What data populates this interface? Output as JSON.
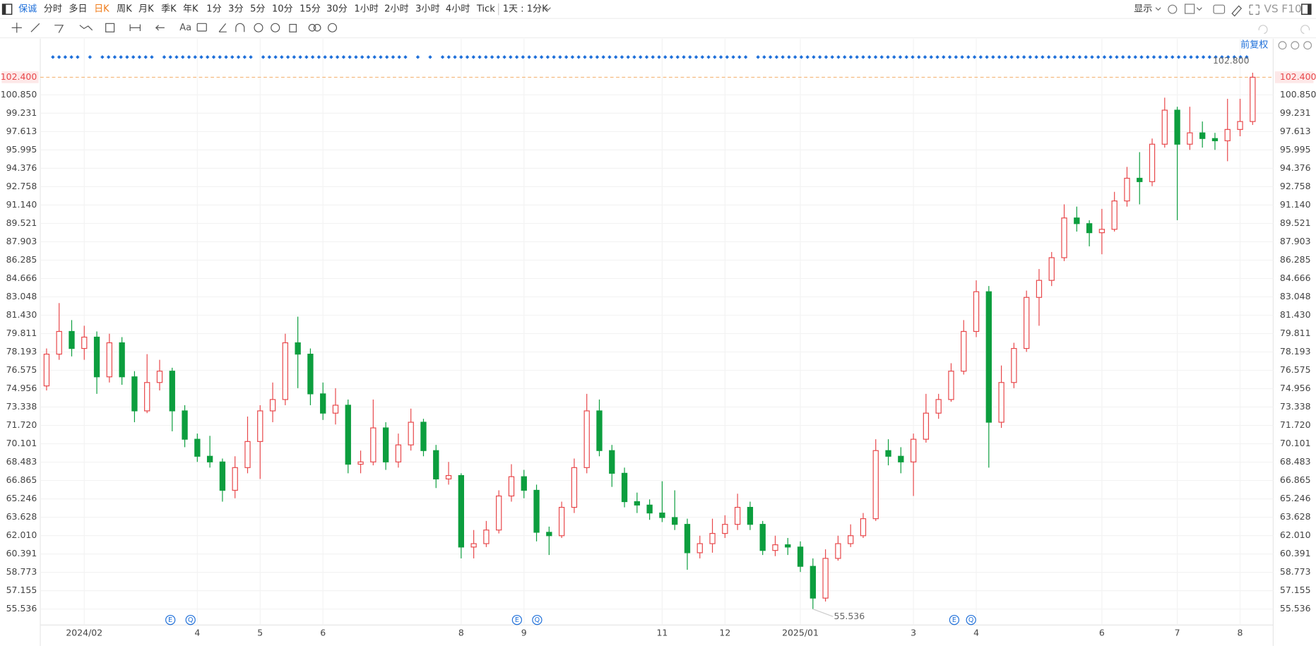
{
  "toolbar": {
    "symbol": "保诚",
    "periods": [
      "分时",
      "多日",
      "日K",
      "周K",
      "月K",
      "季K",
      "年K",
      "1分",
      "3分",
      "5分",
      "10分",
      "15分",
      "30分",
      "1小时",
      "2小时",
      "3小时",
      "4小时",
      "Tick"
    ],
    "active_period": "日K",
    "range": "1天 : 1分K",
    "display": "显示",
    "vs": "VS",
    "f10": "F10"
  },
  "drawing_tools": {
    "text_tool": "Aa"
  },
  "chart_data": {
    "type": "candlestick",
    "adjust": "前复权",
    "up_color": "#e8474a",
    "down_color": "#0c9e3e",
    "grid": true,
    "categories": [
      null,
      null,
      null,
      "2024/02",
      null,
      null,
      null,
      null,
      null,
      null,
      null,
      null,
      "4",
      null,
      null,
      null,
      null,
      "5",
      null,
      null,
      null,
      null,
      "6",
      null,
      null,
      null,
      null,
      null,
      null,
      null,
      null,
      null,
      null,
      "8",
      null,
      null,
      null,
      null,
      "9",
      null,
      null,
      null,
      null,
      null,
      null,
      null,
      null,
      null,
      null,
      "11",
      null,
      null,
      null,
      null,
      "12",
      null,
      null,
      null,
      null,
      null,
      "2025/01",
      null,
      null,
      null,
      null,
      null,
      null,
      null,
      null,
      "3",
      null,
      null,
      null,
      null,
      "4",
      null,
      null,
      null,
      null,
      null,
      null,
      null,
      null,
      null,
      "6",
      null,
      null,
      null,
      null,
      null,
      "7",
      null,
      null,
      null,
      null,
      "8",
      null
    ],
    "open": [
      75.2,
      78,
      80,
      78.5,
      79.5,
      76,
      79,
      76,
      73,
      75.5,
      76.5,
      73,
      70.5,
      69,
      68.5,
      66,
      68,
      70.3,
      73,
      74,
      79,
      78,
      74.5,
      72.8,
      73.5,
      68.3,
      68.5,
      71.5,
      68.5,
      70,
      72,
      69.5,
      67,
      67.3,
      61,
      61.3,
      62.5,
      65.5,
      67.2,
      66,
      62.3,
      62,
      64.5,
      68,
      73,
      69.5,
      67.5,
      65,
      64.7,
      64,
      63.6,
      63,
      60.5,
      61.3,
      62.2,
      63,
      64.5,
      63,
      60.7,
      61.2,
      61,
      59.3,
      56.5,
      60,
      61.3,
      62,
      63.5,
      69.5,
      69,
      68.5,
      70.5,
      72.8,
      74,
      76.5,
      80,
      83.5,
      72,
      75.5,
      78.5,
      83,
      84.5,
      86.5,
      90,
      89.5,
      88.7,
      89,
      91.5,
      93.5,
      93.2,
      96.5,
      99.5,
      96.5,
      97.5,
      97,
      96.8,
      97.8,
      98.5
    ],
    "high": [
      78.5,
      82.5,
      81,
      80.5,
      80,
      79.8,
      79.5,
      76.5,
      78,
      77.5,
      76.8,
      73.5,
      71,
      70.8,
      68.8,
      69,
      72.5,
      73.5,
      75.5,
      79.8,
      81.3,
      78.5,
      75.5,
      75,
      74,
      69.5,
      74,
      72,
      71,
      73.2,
      72.3,
      70,
      68.5,
      67.5,
      62.5,
      63.3,
      66,
      68.3,
      67.8,
      66.5,
      62.8,
      65,
      68.8,
      74.5,
      74,
      70,
      68,
      65.8,
      65.2,
      66.8,
      66,
      63.5,
      62,
      63.5,
      63.8,
      65.7,
      65,
      63.3,
      62,
      61.8,
      61.5,
      60,
      60.8,
      62,
      63,
      64,
      70.5,
      70.5,
      69.8,
      71,
      74.5,
      74.5,
      77.2,
      81,
      84.5,
      84,
      77,
      79,
      83.6,
      85.5,
      87,
      91.2,
      91,
      89.8,
      90.8,
      92.3,
      94.5,
      95.8,
      97,
      100.6,
      99.8,
      99.8,
      98.5,
      97.5,
      100.5,
      100.5,
      102.8
    ],
    "low": [
      74.8,
      77.5,
      77.8,
      77.5,
      74.5,
      75.5,
      75.3,
      72,
      72.8,
      74.8,
      71.2,
      69.8,
      68.5,
      68,
      65,
      65.3,
      67.5,
      67,
      72,
      73.5,
      75,
      73.5,
      72.2,
      71.8,
      67.5,
      67.5,
      68.2,
      67.8,
      68,
      69.5,
      69,
      66.2,
      66.5,
      60,
      60,
      61,
      62.2,
      65,
      65.3,
      61.5,
      60.3,
      61.8,
      64,
      67.5,
      69,
      66.3,
      64.5,
      64,
      63.4,
      63.2,
      62.5,
      59,
      60,
      60.5,
      61.8,
      62.5,
      62.5,
      60.3,
      60.2,
      60.3,
      58.8,
      55.536,
      56.2,
      59.8,
      61,
      61.8,
      63.3,
      68.2,
      67.5,
      65.5,
      70.2,
      72.3,
      73.8,
      76.2,
      79.5,
      68,
      71.5,
      75,
      78.2,
      80.5,
      84,
      86.2,
      88.8,
      87.5,
      86.8,
      88.8,
      91,
      91.2,
      92.8,
      96.2,
      89.8,
      96,
      96.2,
      96,
      95,
      97.2,
      98.2
    ],
    "close": [
      78,
      80,
      78.5,
      79.5,
      76,
      79,
      76,
      73,
      75.5,
      76.5,
      73,
      70.5,
      69,
      68.5,
      66,
      68,
      70.3,
      73,
      74,
      79,
      78,
      74.5,
      72.8,
      73.5,
      68.3,
      68.5,
      71.5,
      68.5,
      70,
      72,
      69.5,
      67,
      67.3,
      61,
      61.3,
      62.5,
      65.5,
      67.2,
      66,
      62.3,
      62,
      64.5,
      68,
      73,
      69.5,
      67.5,
      65,
      64.7,
      64,
      63.6,
      63,
      60.5,
      61.3,
      62.2,
      63,
      64.5,
      63,
      60.7,
      61.2,
      61,
      59.3,
      56.5,
      60,
      61.3,
      62,
      63.5,
      69.5,
      69,
      68.5,
      70.5,
      72.8,
      74,
      76.5,
      80,
      83.5,
      72,
      75.5,
      78.5,
      83,
      84.5,
      86.5,
      90,
      89.5,
      88.7,
      89,
      91.5,
      93.5,
      93.2,
      96.5,
      99.5,
      96.5,
      97.5,
      97,
      96.8,
      97.8,
      98.5,
      102.4
    ],
    "ylim": [
      54.132,
      104.768
    ],
    "yticks": [
      {
        "value": 100.85,
        "label": "100.850"
      },
      99.231,
      97.613,
      95.995,
      94.376,
      92.758,
      {
        "value": 91.14,
        "label": "91.140"
      },
      89.521,
      87.903,
      86.285,
      84.666,
      83.048,
      {
        "value": 81.43,
        "label": "81.430"
      },
      79.811,
      78.193,
      76.575,
      74.956,
      73.338,
      {
        "value": 71.72,
        "label": "71.720"
      },
      70.101,
      68.483,
      66.865,
      65.246,
      63.628,
      {
        "value": 62.01,
        "label": "62.010"
      },
      60.391,
      58.773,
      57.155,
      55.536
    ],
    "last_price": {
      "value": 102.4,
      "label": "102.400"
    },
    "high_label": {
      "value": 102.8,
      "label": "102.800"
    },
    "low_label": {
      "value": 55.536,
      "label": "55.536"
    },
    "events": [
      "E",
      "Q",
      "E",
      "Q",
      "E",
      "Q"
    ]
  }
}
